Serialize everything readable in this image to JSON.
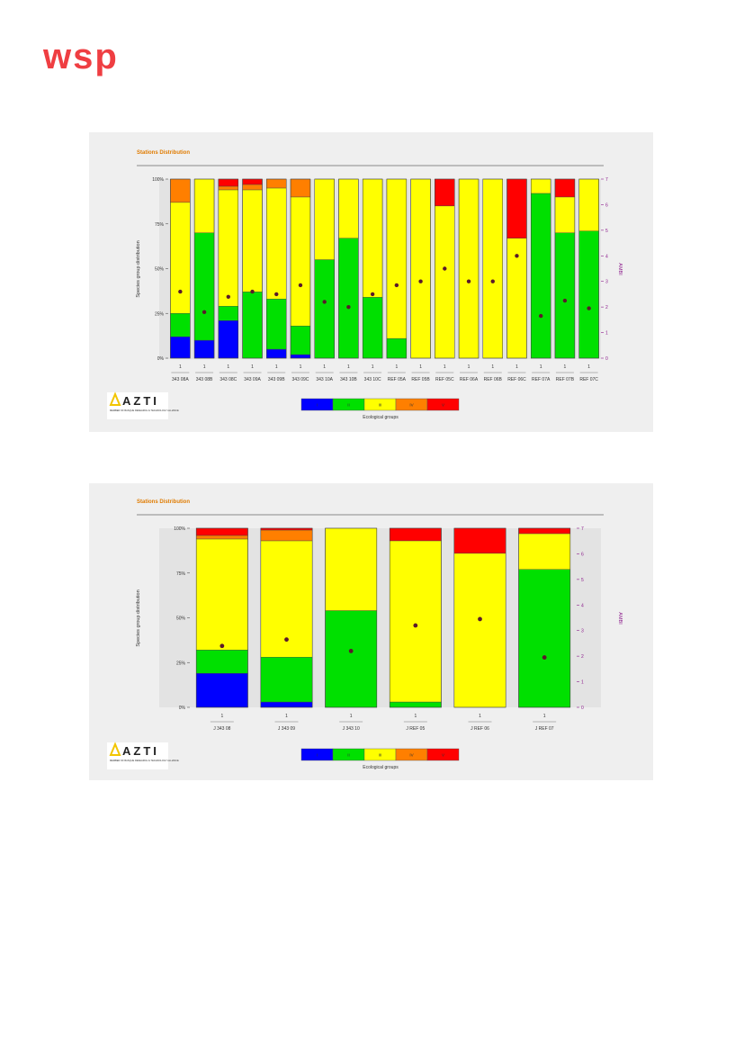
{
  "header": {
    "brand": "wsp"
  },
  "colors": {
    "group_I": "#0000ff",
    "group_II": "#00e000",
    "group_III": "#ffff00",
    "group_IV": "#ff7f00",
    "group_V": "#ff0000",
    "dot": "#5a1a2a",
    "title": "#e07b00",
    "ambi_axis": "#8b1a8b",
    "brand_red": "#ef3e42"
  },
  "charts": [
    {
      "title": "Stations Distribution",
      "ylabel": "Species group distribution",
      "y2label": "AMBI",
      "yticks": [
        "0%",
        "25%",
        "50%",
        "75%",
        "100%"
      ],
      "y2ticks": [
        "0",
        "1",
        "2",
        "3",
        "4",
        "5",
        "6",
        "7"
      ],
      "legend_title": "Ecological groups",
      "legend_labels": [
        "I",
        "II",
        "III",
        "IV",
        "V"
      ],
      "azti": {
        "wordmark": "AZTI",
        "tagline": "MEMBER OF BASQUE RESEARCH & TECHNOLOGY ALLIANCE"
      }
    },
    {
      "title": "Stations Distribution",
      "ylabel": "Species group distribution",
      "y2label": "AMBI",
      "yticks": [
        "0%",
        "25%",
        "50%",
        "75%",
        "100%"
      ],
      "y2ticks": [
        "0",
        "1",
        "2",
        "3",
        "4",
        "5",
        "6",
        "7"
      ],
      "legend_title": "Ecological groups",
      "legend_labels": [
        "I",
        "II",
        "III",
        "IV",
        "V"
      ],
      "azti": {
        "wordmark": "AZTI",
        "tagline": "MEMBER OF BASQUE RESEARCH & TECHNOLOGY ALLIANCE"
      }
    }
  ],
  "chart_data": [
    {
      "type": "bar",
      "stacked": true,
      "title": "Stations Distribution",
      "ylabel": "Species group distribution",
      "y2label": "AMBI",
      "ylim": [
        0,
        100
      ],
      "y2lim": [
        0,
        7
      ],
      "categories": [
        "343 08A",
        "343 08B",
        "343 08C",
        "343 09A",
        "343 09B",
        "343 09C",
        "343 10A",
        "343 10B",
        "343 10C",
        "REF 05A",
        "REF 05B",
        "REF 05C",
        "REF 06A",
        "REF 06B",
        "REF 06C",
        "REF 07A",
        "REF 07B",
        "REF 07C"
      ],
      "tick_numbers": [
        "1",
        "1",
        "1",
        "1",
        "1",
        "1",
        "1",
        "1",
        "1",
        "1",
        "1",
        "1",
        "1",
        "1",
        "1",
        "1",
        "1",
        "1"
      ],
      "series": [
        {
          "name": "I",
          "values": [
            12,
            10,
            21,
            0,
            5,
            2,
            0,
            0,
            0,
            0,
            0,
            0,
            0,
            0,
            0,
            0,
            0,
            0
          ]
        },
        {
          "name": "II",
          "values": [
            13,
            60,
            8,
            37,
            28,
            16,
            55,
            67,
            34,
            11,
            0,
            0,
            0,
            0,
            0,
            92,
            70,
            71
          ]
        },
        {
          "name": "III",
          "values": [
            62,
            30,
            65,
            57,
            62,
            72,
            45,
            33,
            66,
            89,
            100,
            85,
            100,
            100,
            67,
            8,
            20,
            29
          ]
        },
        {
          "name": "IV",
          "values": [
            13,
            0,
            2,
            3,
            5,
            10,
            0,
            0,
            0,
            0,
            0,
            0,
            0,
            0,
            0,
            0,
            0,
            0
          ]
        },
        {
          "name": "V",
          "values": [
            0,
            0,
            4,
            3,
            0,
            0,
            0,
            0,
            0,
            0,
            0,
            15,
            0,
            0,
            33,
            0,
            10,
            0
          ]
        }
      ],
      "ambi": [
        2.6,
        1.8,
        2.4,
        2.6,
        2.5,
        2.85,
        2.2,
        2.0,
        2.5,
        2.85,
        3.0,
        3.5,
        3.0,
        3.0,
        4.0,
        1.65,
        2.25,
        1.95
      ],
      "legend": "bottom"
    },
    {
      "type": "bar",
      "stacked": true,
      "title": "Stations Distribution",
      "ylabel": "Species group distribution",
      "y2label": "AMBI",
      "ylim": [
        0,
        100
      ],
      "y2lim": [
        0,
        7
      ],
      "categories": [
        "J 343 08",
        "J 343 09",
        "J 343 10",
        "J REF 05",
        "J REF 06",
        "J REF 07"
      ],
      "tick_numbers": [
        "1",
        "1",
        "1",
        "1",
        "1",
        "1"
      ],
      "series": [
        {
          "name": "I",
          "values": [
            19,
            3,
            0,
            0,
            0,
            0
          ]
        },
        {
          "name": "II",
          "values": [
            13,
            25,
            54,
            3,
            0,
            77
          ]
        },
        {
          "name": "III",
          "values": [
            62,
            65,
            46,
            90,
            86,
            20
          ]
        },
        {
          "name": "IV",
          "values": [
            2,
            6,
            0,
            0,
            0,
            0
          ]
        },
        {
          "name": "V",
          "values": [
            4,
            1,
            0,
            7,
            14,
            3
          ]
        }
      ],
      "ambi": [
        2.4,
        2.65,
        2.2,
        3.2,
        3.45,
        1.95
      ],
      "legend": "bottom"
    }
  ]
}
